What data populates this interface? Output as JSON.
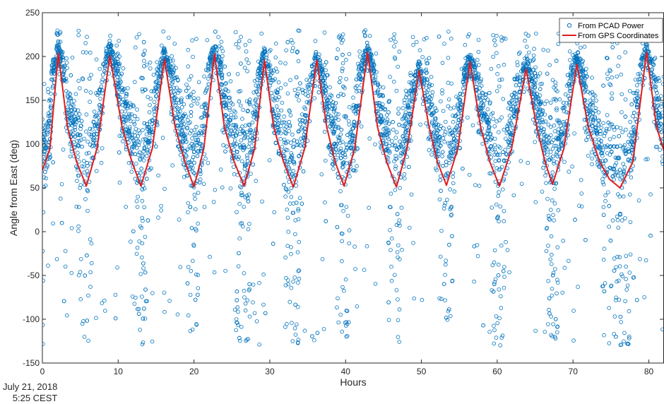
{
  "chart_data": {
    "type": "scatter",
    "title": "",
    "xlabel": "Hours",
    "ylabel": "Angle from East (deg)",
    "xlim": [
      0,
      82
    ],
    "ylim": [
      -150,
      250
    ],
    "xticks": [
      0,
      10,
      20,
      30,
      40,
      50,
      60,
      70,
      80
    ],
    "yticks": [
      -150,
      -100,
      -50,
      0,
      50,
      100,
      150,
      200,
      250
    ],
    "grid": false,
    "legend_position": "top-right",
    "series": [
      {
        "name": "From PCAD Power",
        "style": "markers",
        "color": "#0072BD",
        "description_points": "dense noisy scatter following the red curve, with wide vertical spread between -130 and 230 deg near each minimum",
        "peak_hours": [
          2.1,
          8.9,
          16.1,
          22.7,
          29.3,
          36.2,
          42.9,
          49.7,
          56.4,
          63.8,
          70.5,
          79.7
        ],
        "peak_values": [
          218,
          219,
          212,
          218,
          213,
          209,
          218,
          197,
          208,
          203,
          212,
          218
        ]
      },
      {
        "name": "From GPS Coordinates",
        "style": "line",
        "color": "#E41A1C",
        "x": [
          0,
          1.0,
          2.1,
          3.3,
          4.5,
          5.8,
          7.2,
          8.9,
          10.5,
          11.8,
          13.0,
          14.5,
          16.1,
          17.5,
          18.8,
          20.0,
          21.3,
          22.7,
          24.0,
          25.3,
          26.6,
          28.0,
          29.3,
          30.5,
          31.8,
          33.1,
          34.6,
          36.2,
          37.5,
          38.6,
          39.8,
          41.2,
          42.9,
          44.2,
          45.4,
          46.7,
          48.1,
          49.7,
          51.0,
          52.1,
          53.3,
          54.8,
          56.4,
          57.8,
          59.0,
          60.3,
          61.9,
          63.8,
          65.2,
          66.3,
          67.3,
          68.8,
          70.5,
          72.0,
          73.5,
          74.8,
          76.2,
          77.9,
          79.7,
          81.0,
          82.0
        ],
        "y": [
          70,
          95,
          204,
          120,
          80,
          52,
          95,
          201,
          120,
          80,
          52,
          95,
          197,
          120,
          80,
          51,
          95,
          203,
          120,
          80,
          52,
          95,
          196,
          120,
          80,
          51,
          95,
          196,
          120,
          80,
          52,
          95,
          205,
          120,
          80,
          51,
          95,
          184,
          120,
          80,
          53,
          95,
          194,
          120,
          80,
          52,
          95,
          186,
          120,
          80,
          54,
          95,
          191,
          120,
          80,
          60,
          50,
          80,
          205,
          120,
          92
        ]
      }
    ]
  },
  "annotation": {
    "date": "July 21, 2018",
    "time": "5:25 CEST"
  }
}
